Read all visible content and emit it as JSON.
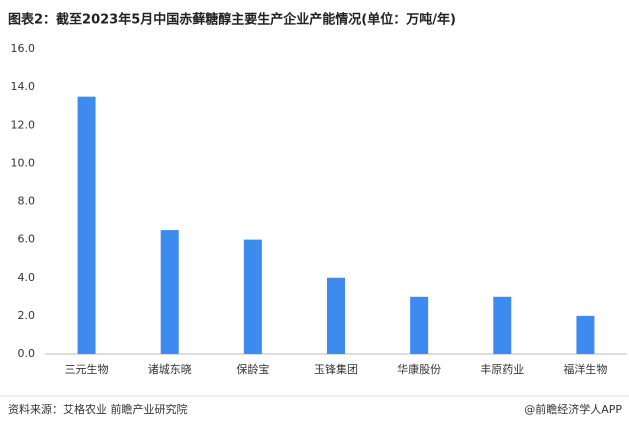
{
  "chart_data": {
    "type": "bar",
    "title": "图表2：截至2023年5月中国赤藓糖醇主要生产企业产能情况(单位：万吨/年)",
    "categories": [
      "三元生物",
      "诸城东晓",
      "保龄宝",
      "玉锋集团",
      "华康股份",
      "丰原药业",
      "福洋生物"
    ],
    "values": [
      13.5,
      6.5,
      6.0,
      4.0,
      3.0,
      3.0,
      2.0
    ],
    "color": "#3d8bef",
    "ylim": [
      0,
      16
    ],
    "yticks": [
      {
        "value": 0,
        "label": "0.0"
      },
      {
        "value": 2,
        "label": "2.0"
      },
      {
        "value": 4,
        "label": "4.0"
      },
      {
        "value": 6,
        "label": "6.0"
      },
      {
        "value": 8,
        "label": "8.0"
      },
      {
        "value": 10,
        "label": "10.0"
      },
      {
        "value": 12,
        "label": "12.0"
      },
      {
        "value": 14,
        "label": "14.0"
      },
      {
        "value": 16,
        "label": "16.0"
      }
    ],
    "grid": false,
    "source": "资料来源：艾格农业 前瞻产业研究院",
    "credit": "@前瞻经济学人APP"
  }
}
